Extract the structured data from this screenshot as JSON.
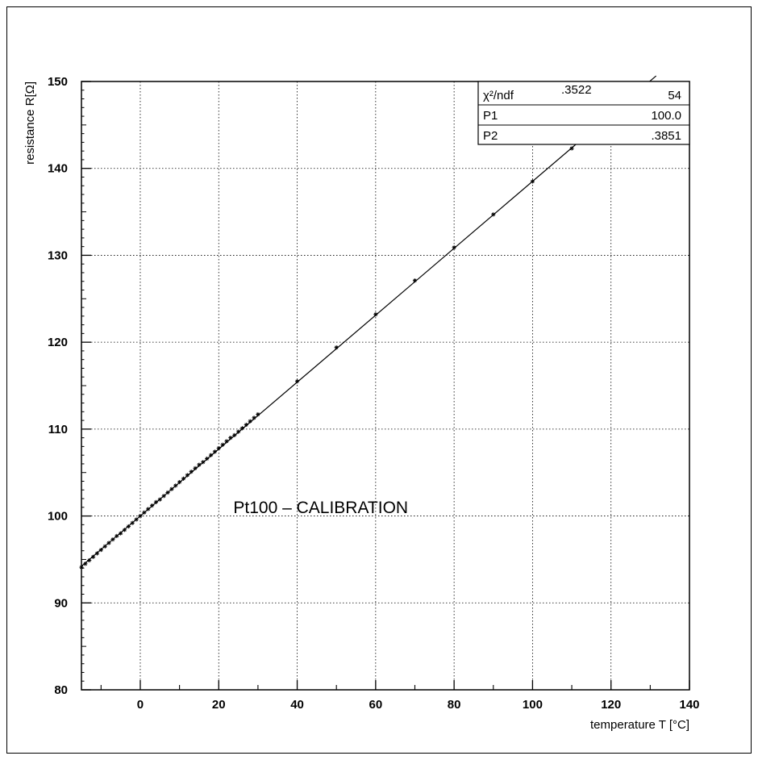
{
  "chart_data": {
    "type": "scatter",
    "title": "Pt100 – CALIBRATION",
    "xlabel": "temperature  T [°C]",
    "ylabel": "resistance  R[Ω]",
    "xlim": [
      -15,
      140
    ],
    "ylim": [
      80,
      150
    ],
    "x_ticks": [
      "0",
      "20",
      "40",
      "60",
      "80",
      "100",
      "120",
      "140"
    ],
    "y_ticks": [
      "80",
      "90",
      "100",
      "110",
      "120",
      "130",
      "140",
      "150"
    ],
    "grid": true,
    "series": [
      {
        "marker": "star",
        "x": [
          -15,
          -14,
          -13,
          -12,
          -11,
          -10,
          -9,
          -8,
          -7,
          -6,
          -5,
          -4,
          -3,
          -2,
          -1,
          0,
          1,
          2,
          3,
          4,
          5,
          6,
          7,
          8,
          9,
          10,
          11,
          12,
          13,
          14,
          15,
          16,
          17,
          18,
          19,
          20,
          21,
          22,
          23,
          24,
          25,
          26,
          27,
          28,
          29,
          30,
          40,
          50,
          60,
          70,
          80,
          90,
          100,
          110,
          120,
          130
        ],
        "y": [
          94.1,
          94.5,
          94.9,
          95.3,
          95.7,
          96.1,
          96.5,
          96.9,
          97.3,
          97.7,
          98.0,
          98.4,
          98.8,
          99.2,
          99.6,
          100.0,
          100.4,
          100.8,
          101.2,
          101.6,
          101.9,
          102.3,
          102.7,
          103.1,
          103.5,
          103.9,
          104.3,
          104.7,
          105.1,
          105.5,
          105.9,
          106.2,
          106.6,
          107.0,
          107.4,
          107.8,
          108.2,
          108.6,
          109.0,
          109.3,
          109.7,
          110.1,
          110.5,
          110.9,
          111.3,
          111.7,
          115.5,
          119.4,
          123.2,
          127.1,
          130.9,
          134.7,
          138.5,
          142.3,
          146.1,
          149.8
        ]
      }
    ],
    "fit": {
      "type": "line",
      "p1": 100.0,
      "p2": 0.3851
    },
    "stats_box": {
      "rows": [
        {
          "label": "χ²/ndf",
          "value_left": ".3522",
          "value_right": "54"
        },
        {
          "label": "P1",
          "value_left": "",
          "value_right": "100.0"
        },
        {
          "label": "P2",
          "value_left": "",
          "value_right": ".3851"
        }
      ]
    }
  }
}
